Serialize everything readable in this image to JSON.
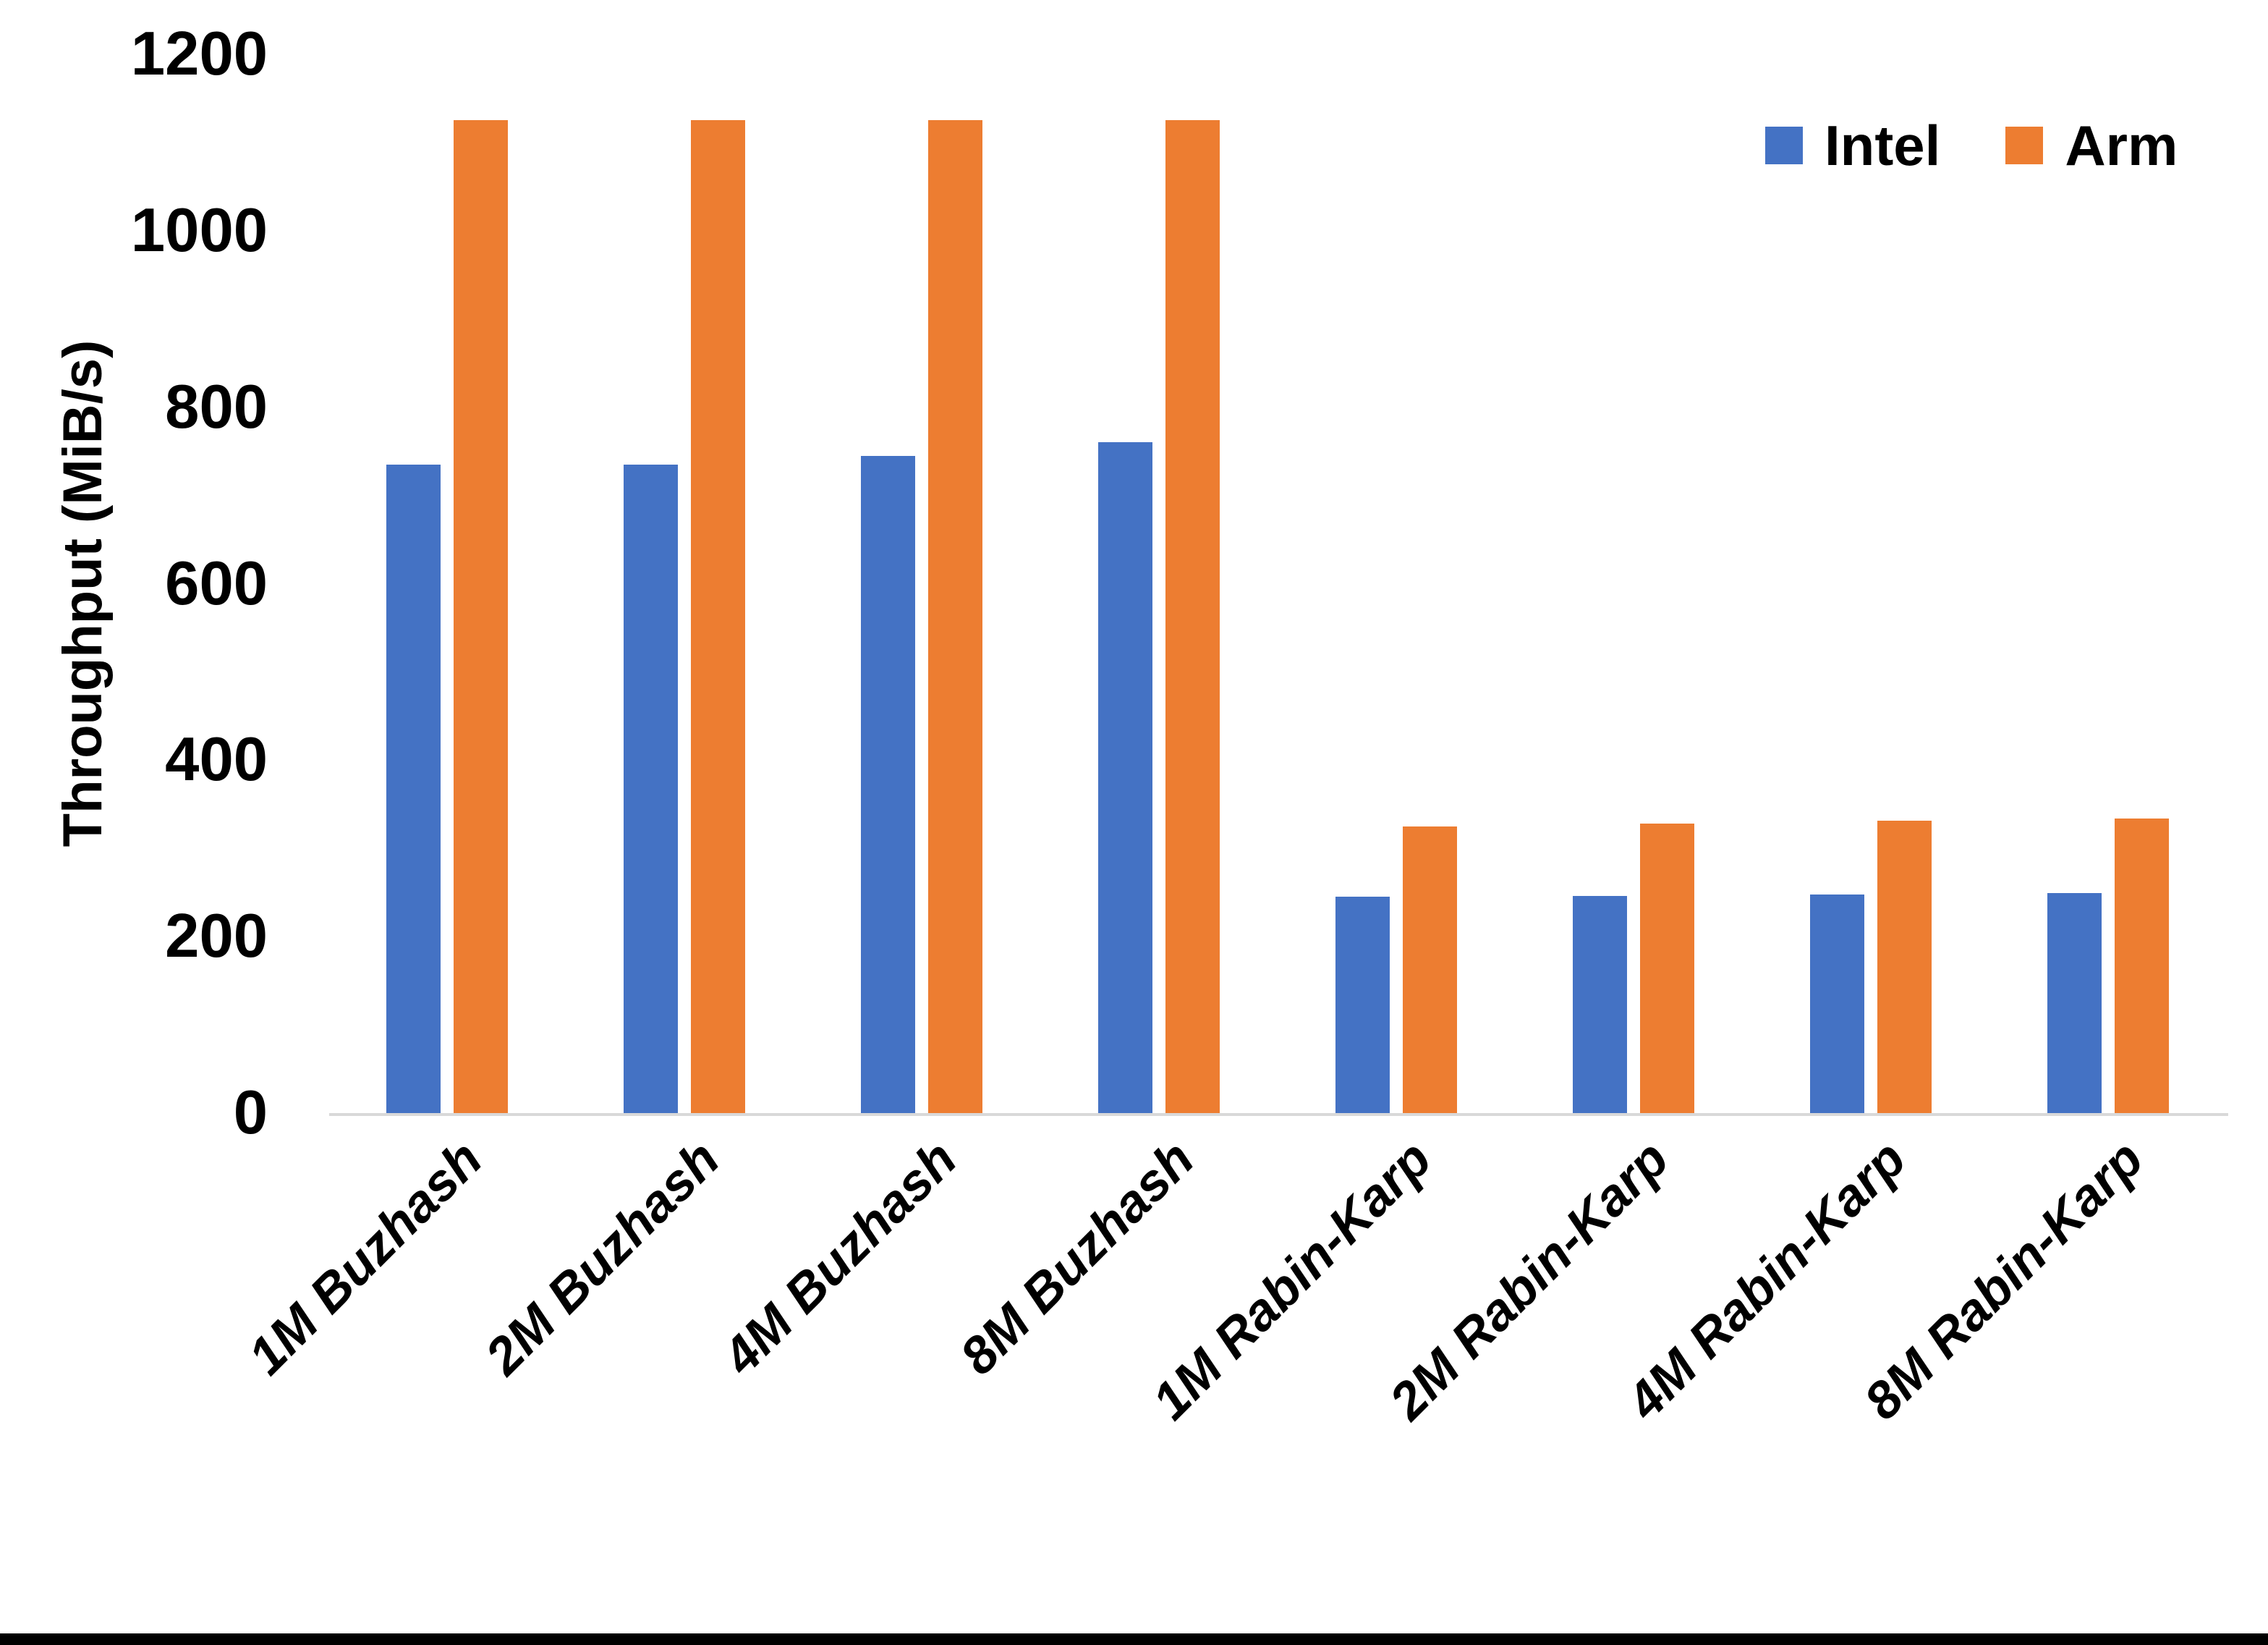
{
  "chart_data": {
    "type": "bar",
    "title": "",
    "xlabel": "",
    "ylabel": "Throughput (MiB/s)",
    "ylim": [
      0,
      1200
    ],
    "yticks": [
      0,
      200,
      400,
      600,
      800,
      1000,
      1200
    ],
    "grid": false,
    "legend_position": "top-right",
    "categories": [
      "1M Buzhash",
      "2M Buzhash",
      "4M Buzhash",
      "8M Buzhash",
      "1M Rabin-Karp",
      "2M Rabin-Karp",
      "4M Rabin-Karp",
      "8M Rabin-Karp"
    ],
    "series": [
      {
        "name": "Intel",
        "color": "#4472C4",
        "values": [
          735,
          735,
          745,
          760,
          245,
          246,
          248,
          249
        ]
      },
      {
        "name": "Arm",
        "color": "#ED7D31",
        "values": [
          1125,
          1125,
          1125,
          1125,
          325,
          328,
          331,
          334
        ]
      }
    ]
  },
  "colors": {
    "background": "#FFFFFF",
    "axis_line": "#D9D9D9",
    "text": "#000000",
    "bottom_border": "#000000"
  }
}
